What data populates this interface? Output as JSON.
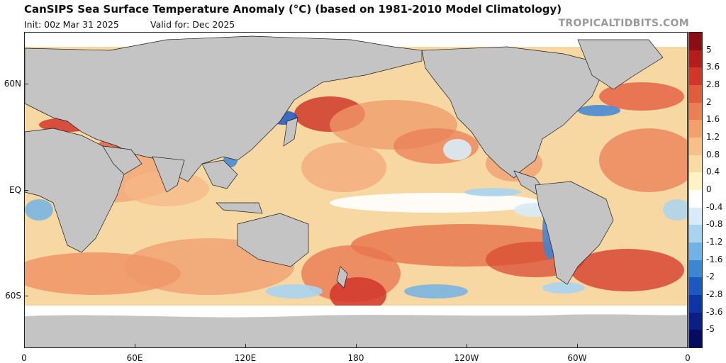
{
  "title": "CanSIPS Sea Surface Temperature Anomaly (°C) (based on 1981-2010 Model Climatology)",
  "init_text": "Init: 00z Mar 31 2025",
  "valid_text": "Valid for: Dec 2025",
  "watermark": "TROPICALTIDBITS.COM",
  "lat_labels": [
    "60N",
    "EQ",
    "60S"
  ],
  "lon_labels": [
    "0",
    "60E",
    "120E",
    "180",
    "120W",
    "60W",
    "0"
  ],
  "colorbar": {
    "labels": [
      "5",
      "3.6",
      "2.8",
      "2",
      "1.6",
      "1.2",
      "0.8",
      "0.4",
      "0",
      "-0.4",
      "-0.8",
      "-1.2",
      "-1.6",
      "-2",
      "-2.8",
      "-3.6",
      "-5"
    ],
    "colors": [
      "#8b0f10",
      "#b51d1c",
      "#d2362a",
      "#e25b3f",
      "#ed7d55",
      "#f39f6e",
      "#f7bf8a",
      "#fadba6",
      "#fff2c4",
      "#ffffff",
      "#d7ecf8",
      "#a9d4f1",
      "#72b3e6",
      "#3d86d6",
      "#1c58c2",
      "#0e35a8",
      "#0a1f86",
      "#050c5e"
    ]
  },
  "colors": {
    "land": "#c4c4c4",
    "ocean_base": "#f9d9a3",
    "sea_ice": "#ffffff"
  }
}
